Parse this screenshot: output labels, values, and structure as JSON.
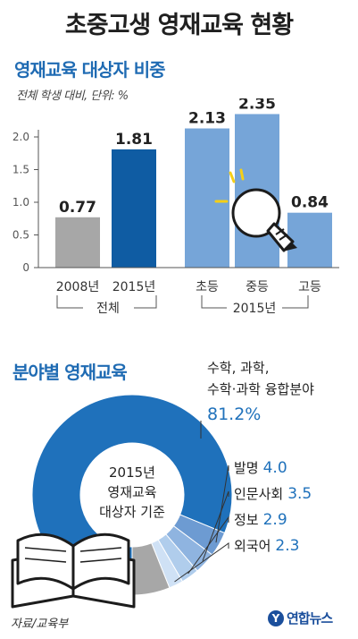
{
  "title": "초중고생 영재교육 현황",
  "bar_section": {
    "title": "영재교육 대상자 비중",
    "subtitle": "전체 학생 대비, 단위: %",
    "group_labels": [
      "전체",
      "2015년"
    ]
  },
  "donut_section": {
    "title": "분야별 영재교육",
    "center_label": [
      "2015년",
      "영재교육",
      "대상자 기준"
    ]
  },
  "source": "자료/교육부",
  "logo": {
    "mark": "Y",
    "text": "연합뉴스",
    "icon": "yonhap-logo-icon"
  },
  "colors": {
    "title_blue": "#1f6bb3",
    "bar_gray": "#a7a7a7",
    "bar_navy": "#0f5ca3",
    "bar_light": "#76a5d8",
    "donut_main": "#1f71bb",
    "value_blue": "#1f71bb"
  },
  "icons": [
    "light-bulb-icon",
    "open-book-icon"
  ],
  "chart_data": [
    {
      "type": "bar",
      "categories": [
        "2008년",
        "2015년",
        "초등",
        "중등",
        "고등"
      ],
      "values": [
        0.77,
        1.81,
        2.13,
        2.35,
        0.84
      ],
      "value_labels": [
        "0.77",
        "1.81",
        "2.13",
        "2.35",
        "0.84"
      ],
      "yticks": [
        "0",
        "0.5",
        "1.0",
        "1.5",
        "2.0"
      ],
      "ylim": [
        0,
        2.0
      ],
      "grid": false,
      "colors": [
        "#a7a7a7",
        "#0f5ca3",
        "#76a5d8",
        "#76a5d8",
        "#76a5d8"
      ]
    },
    {
      "type": "pie",
      "categories": [
        "수학, 과학, 수학·과학 융합분야",
        "발명",
        "인문사회",
        "정보",
        "외국어"
      ],
      "label_lines": [
        [
          "수학, 과학,",
          "수학·과학 융합분야"
        ],
        [
          "발명"
        ],
        [
          "인문사회"
        ],
        [
          "정보"
        ],
        [
          "외국어"
        ]
      ],
      "values": [
        81.2,
        4.0,
        3.5,
        2.9,
        2.3
      ],
      "value_labels": [
        "81.2%",
        "4.0",
        "3.5",
        "2.9",
        "2.3"
      ],
      "colors": [
        "#1f71bb",
        "#6d9bd2",
        "#8fb4e0",
        "#b0cdec",
        "#cfe1f5"
      ],
      "remainder_color": "#a7a7a7"
    }
  ]
}
